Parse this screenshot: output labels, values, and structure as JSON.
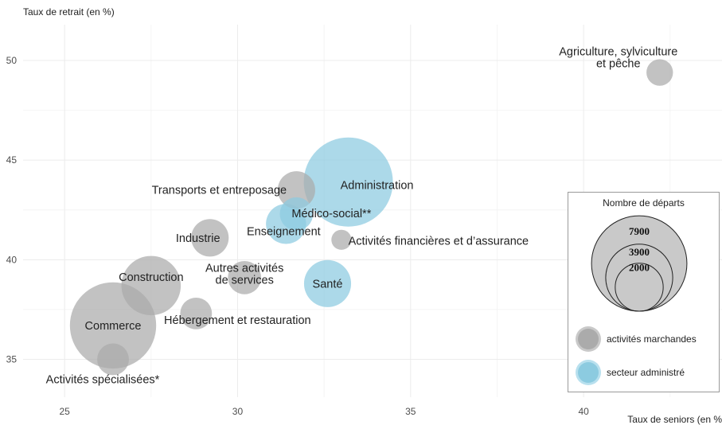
{
  "chart_data": {
    "type": "scatter",
    "subtype": "bubble",
    "ylabel": "Taux de retrait (en %)",
    "xlabel": "Taux de seniors (en %",
    "xlim": [
      23.8,
      44.0
    ],
    "ylim": [
      33.1,
      51.8
    ],
    "xticks": [
      25,
      30,
      35,
      40
    ],
    "yticks": [
      35,
      40,
      45,
      50
    ],
    "grid": true,
    "colors": {
      "marchandes": "#ababab",
      "administre": "#8ccbe0",
      "label": "#222222",
      "grid": "#ececec",
      "axis_text": "#4d4d4d"
    },
    "points": [
      {
        "label": "Agriculture, sylviculture\net pêche",
        "x": 42.2,
        "y": 49.4,
        "departs": 700,
        "group": "marchandes",
        "label_dx": -52,
        "label_dy": -19
      },
      {
        "label": "Administration",
        "x": 33.2,
        "y": 43.9,
        "departs": 7900,
        "group": "administre",
        "label_dx": 36,
        "label_dy": 4
      },
      {
        "label": "Transports et entreposage",
        "x": 31.7,
        "y": 43.5,
        "departs": 1400,
        "group": "marchandes",
        "label_dx": -97,
        "label_dy": 0
      },
      {
        "label": "Médico-social**",
        "x": 31.7,
        "y": 42.3,
        "departs": 1100,
        "group": "administre",
        "label_dx": 44,
        "label_dy": -1
      },
      {
        "label": "Enseignement",
        "x": 31.4,
        "y": 41.8,
        "departs": 1600,
        "group": "administre",
        "label_dx": -3,
        "label_dy": 9
      },
      {
        "label": "Activités financières et d’assurance",
        "x": 33.0,
        "y": 41.0,
        "departs": 400,
        "group": "marchandes",
        "label_dx": 122,
        "label_dy": 1
      },
      {
        "label": "Industrie",
        "x": 29.2,
        "y": 41.1,
        "departs": 1400,
        "group": "marchandes",
        "label_dx": -15,
        "label_dy": 0
      },
      {
        "label": "Santé",
        "x": 32.6,
        "y": 38.8,
        "departs": 2200,
        "group": "administre",
        "label_dx": 0,
        "label_dy": 0
      },
      {
        "label": "Autres activités\nde services",
        "x": 30.2,
        "y": 39.1,
        "departs": 1100,
        "group": "marchandes",
        "label_dx": 0,
        "label_dy": -5
      },
      {
        "label": "Construction",
        "x": 27.5,
        "y": 38.7,
        "departs": 3500,
        "group": "marchandes",
        "label_dx": 0,
        "label_dy": -11
      },
      {
        "label": "Hébergement et restauration",
        "x": 28.8,
        "y": 37.3,
        "departs": 1000,
        "group": "marchandes",
        "label_dx": 52,
        "label_dy": 8
      },
      {
        "label": "Commerce",
        "x": 26.4,
        "y": 36.7,
        "departs": 7400,
        "group": "marchandes",
        "label_dx": 0,
        "label_dy": 0
      },
      {
        "label": "Activités spécialisées*",
        "x": 26.4,
        "y": 35.0,
        "departs": 1000,
        "group": "marchandes",
        "label_dx": -13,
        "label_dy": 25
      }
    ],
    "legend": {
      "title": "Nombre de départs",
      "placement": "right",
      "sizes": [
        7900,
        3900,
        2000
      ],
      "size_labels": [
        "7900",
        "3900",
        "2000"
      ],
      "groups": [
        {
          "key": "marchandes",
          "label": "activités marchandes",
          "color": "#ababab"
        },
        {
          "key": "administre",
          "label": "secteur administré",
          "color": "#8ccbe0"
        }
      ]
    }
  }
}
